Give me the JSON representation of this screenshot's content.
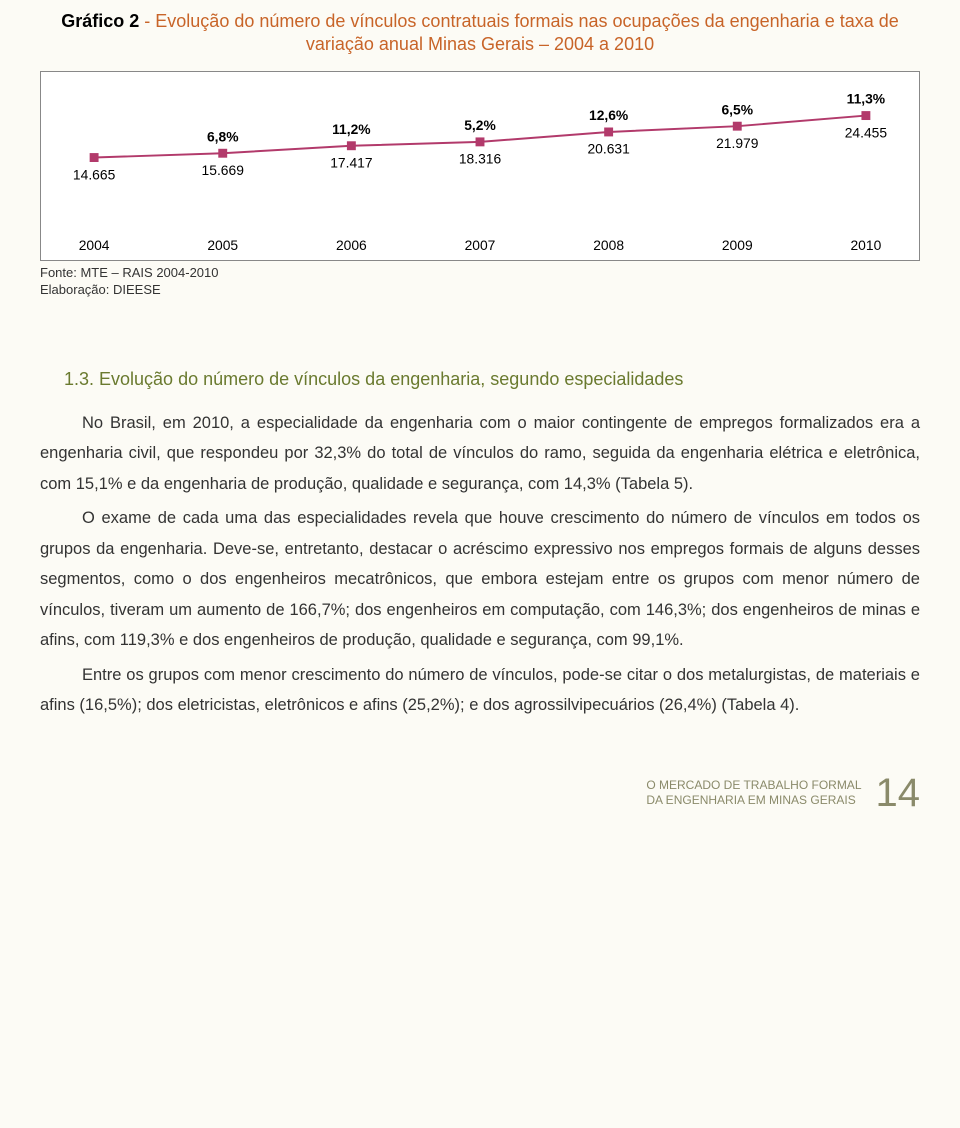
{
  "chart": {
    "title_lead": "Gráfico 2",
    "title_rest": " - Evolução do número de vínculos contratuais formais nas ocupações da engenharia e taxa de variação anual Minas Gerais – 2004 a 2010",
    "type": "line",
    "years": [
      "2004",
      "2005",
      "2006",
      "2007",
      "2008",
      "2009",
      "2010"
    ],
    "values": [
      14665,
      15669,
      17417,
      18316,
      20631,
      21979,
      24455
    ],
    "value_labels": [
      "14.665",
      "15.669",
      "17.417",
      "18.316",
      "20.631",
      "21.979",
      "24.455"
    ],
    "pct_labels": [
      "",
      "6,8%",
      "11,2%",
      "5,2%",
      "12,6%",
      "6,5%",
      "11,3%"
    ],
    "line_color": "#b23a6b",
    "marker_color": "#b23a6b",
    "marker_size": 9,
    "line_width": 2,
    "text_color": "#000000",
    "axis_font_size": 14,
    "label_font_size": 14,
    "ylim": [
      0,
      30000
    ],
    "background": "#ffffff",
    "border_color": "#888888"
  },
  "source": {
    "line1": "Fonte: MTE – RAIS 2004-2010",
    "line2": "Elaboração: DIEESE"
  },
  "heading": "1.3. Evolução do número de vínculos da engenharia, segundo especialidades",
  "paragraphs": [
    "No Brasil, em 2010, a especialidade da engenharia com o maior contingente de empregos formalizados era a engenharia civil, que respondeu por 32,3% do total de vínculos do ramo, seguida da engenharia elétrica e eletrônica, com 15,1% e da engenharia de produção, qualidade e segurança, com 14,3% (Tabela 5).",
    "O exame de cada uma das especialidades revela que houve crescimento do número de vínculos em todos os grupos da engenharia. Deve-se, entretanto, destacar o acréscimo expressivo nos empregos formais de alguns desses segmentos, como o dos engenheiros mecatrônicos, que embora estejam entre os grupos com menor número de vínculos, tiveram um aumento de 166,7%; dos engenheiros em computação, com 146,3%; dos engenheiros de minas e afins, com 119,3% e dos engenheiros de produção, qualidade e segurança, com 99,1%.",
    "Entre os grupos com menor crescimento do número de vínculos, pode-se citar o dos metalurgistas, de materiais e afins (16,5%); dos eletricistas, eletrônicos e afins (25,2%); e dos agrossilvipecuários (26,4%) (Tabela 4)."
  ],
  "footer": {
    "line1": "O MERCADO DE TRABALHO FORMAL",
    "line2": "DA ENGENHARIA EM MINAS GERAIS",
    "page": "14"
  }
}
